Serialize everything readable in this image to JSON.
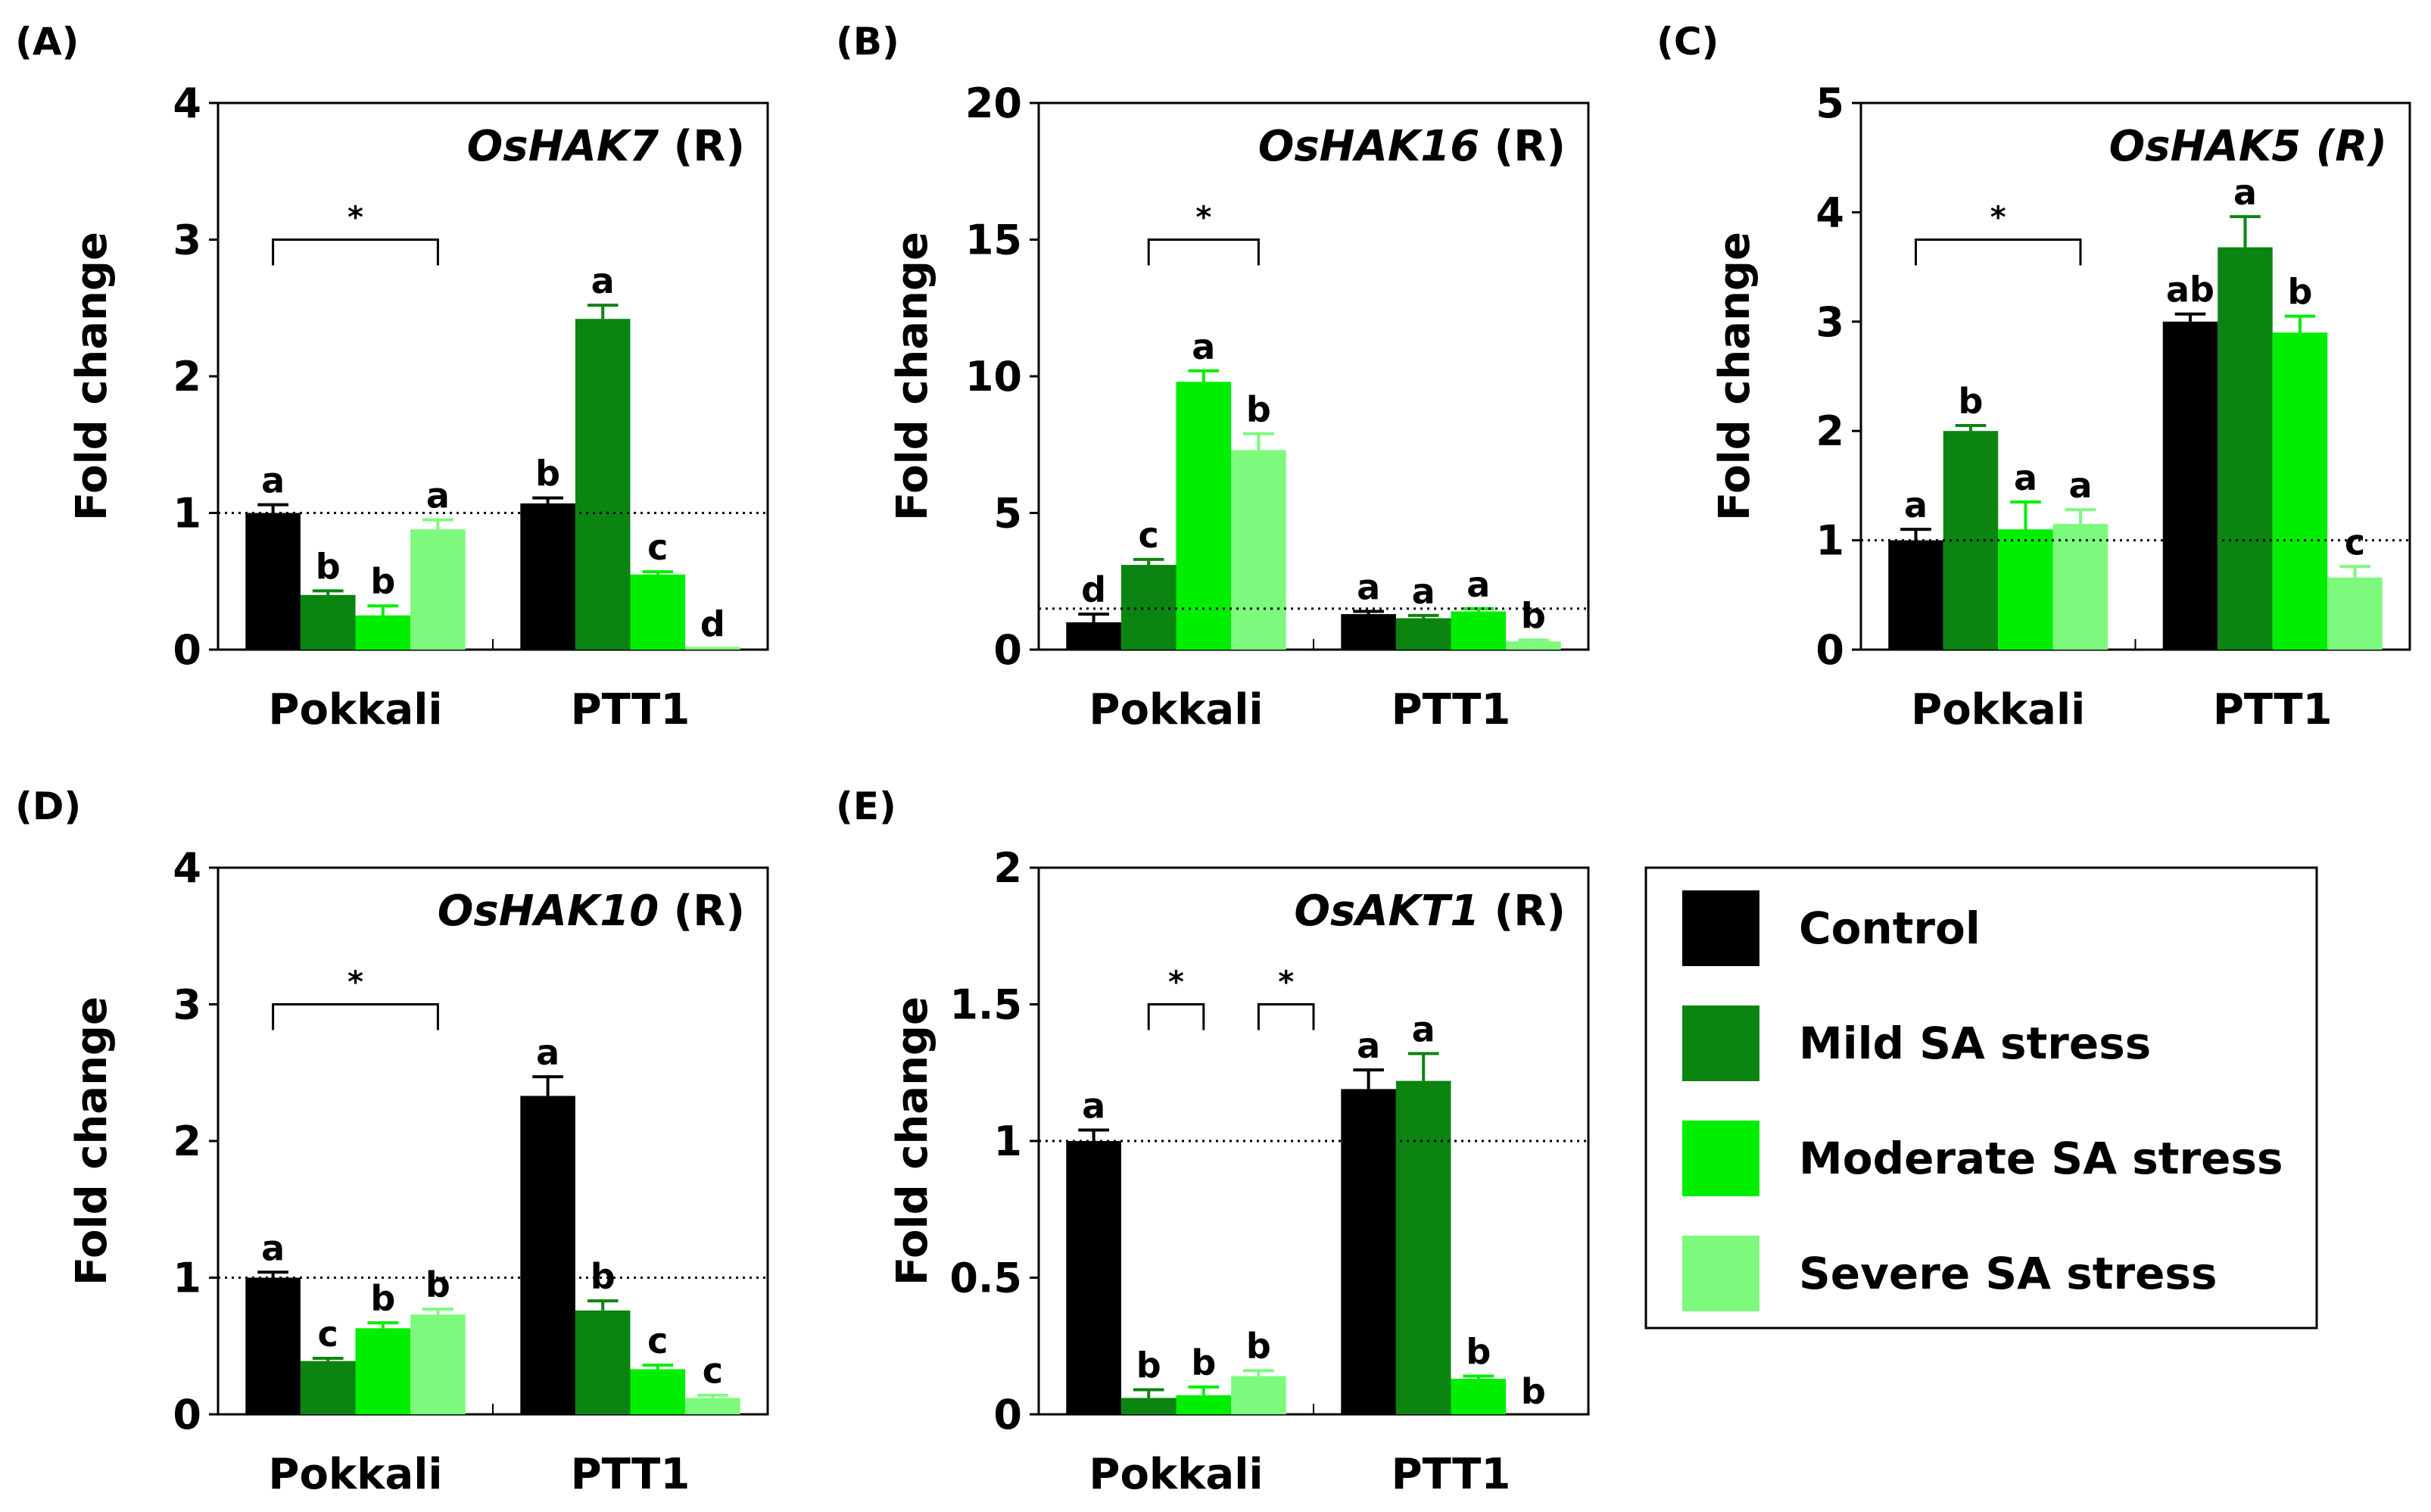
{
  "legend": {
    "series_colors": [
      "#000000",
      "#0b8412",
      "#00ee00",
      "#7dfa7d"
    ],
    "entries": [
      "Control",
      "Mild SA stress",
      "Moderate SA stress",
      "Severe SA stress"
    ]
  },
  "chart_data": [
    {
      "panel": "(A)",
      "type": "bar",
      "gene": "OsHAK7",
      "suffix": "(R)",
      "gene_italic_suffix": false,
      "title": "OsHAK7 (R)",
      "ylabel": "Fold change",
      "ylim": [
        0,
        4
      ],
      "yticks": [
        "0",
        "1",
        "2",
        "3",
        "4"
      ],
      "reference_line": 1,
      "categories": [
        "Pokkali",
        "PTT1"
      ],
      "series": [
        {
          "name": "Control",
          "values": [
            1.0,
            1.07
          ],
          "errors": [
            0.06,
            0.04
          ],
          "letters": [
            "a",
            "b"
          ]
        },
        {
          "name": "Mild SA stress",
          "values": [
            0.4,
            2.42
          ],
          "errors": [
            0.03,
            0.1
          ],
          "letters": [
            "b",
            "a"
          ]
        },
        {
          "name": "Moderate SA stress",
          "values": [
            0.25,
            0.55
          ],
          "errors": [
            0.07,
            0.02
          ],
          "letters": [
            "b",
            "c"
          ]
        },
        {
          "name": "Severe SA stress",
          "values": [
            0.88,
            0.02
          ],
          "errors": [
            0.07,
            0.0
          ],
          "letters": [
            "a",
            "d"
          ]
        }
      ],
      "brackets": [
        {
          "category": 0,
          "from": 0,
          "to": 3,
          "y": 3.0,
          "text": "*"
        }
      ]
    },
    {
      "panel": "(B)",
      "type": "bar",
      "gene": "OsHAK16",
      "suffix": "(R)",
      "gene_italic_suffix": false,
      "title": "OsHAK16 (R)",
      "ylabel": "Fold change",
      "ylim": [
        0,
        20
      ],
      "yticks": [
        "0",
        "5",
        "10",
        "15",
        "20"
      ],
      "reference_line": 1.5,
      "categories": [
        "Pokkali",
        "PTT1"
      ],
      "series": [
        {
          "name": "Control",
          "values": [
            1.0,
            1.3
          ],
          "errors": [
            0.3,
            0.1
          ],
          "letters": [
            "d",
            "a"
          ]
        },
        {
          "name": "Mild SA stress",
          "values": [
            3.1,
            1.15
          ],
          "errors": [
            0.2,
            0.1
          ],
          "letters": [
            "c",
            "a"
          ]
        },
        {
          "name": "Moderate SA stress",
          "values": [
            9.8,
            1.4
          ],
          "errors": [
            0.4,
            0.1
          ],
          "letters": [
            "a",
            "a"
          ]
        },
        {
          "name": "Severe SA stress",
          "values": [
            7.3,
            0.3
          ],
          "errors": [
            0.6,
            0.05
          ],
          "letters": [
            "b",
            "b"
          ]
        }
      ],
      "brackets": [
        {
          "category": 0,
          "from": 1,
          "to": 3,
          "y": 15,
          "text": "*"
        }
      ]
    },
    {
      "panel": "(C)",
      "type": "bar",
      "gene": "OsHAK5",
      "suffix": "(R)",
      "gene_italic_suffix": true,
      "title": "OsHAK5 (R)",
      "ylabel": "Fold change",
      "ylim": [
        0,
        5
      ],
      "yticks": [
        "0",
        "1",
        "2",
        "3",
        "4",
        "5"
      ],
      "reference_line": 1,
      "categories": [
        "Pokkali",
        "PTT1"
      ],
      "series": [
        {
          "name": "Control",
          "values": [
            1.0,
            3.0
          ],
          "errors": [
            0.1,
            0.07
          ],
          "letters": [
            "a",
            "ab"
          ]
        },
        {
          "name": "Mild SA stress",
          "values": [
            2.0,
            3.68
          ],
          "errors": [
            0.05,
            0.28
          ],
          "letters": [
            "b",
            "a"
          ]
        },
        {
          "name": "Moderate SA stress",
          "values": [
            1.1,
            2.9
          ],
          "errors": [
            0.25,
            0.15
          ],
          "letters": [
            "a",
            "b"
          ]
        },
        {
          "name": "Severe SA stress",
          "values": [
            1.15,
            0.66
          ],
          "errors": [
            0.13,
            0.1
          ],
          "letters": [
            "a",
            "c"
          ]
        }
      ],
      "brackets": [
        {
          "category": 0,
          "from": 0,
          "to": 3,
          "y": 3.75,
          "text": "*"
        }
      ]
    },
    {
      "panel": "(D)",
      "type": "bar",
      "gene": "OsHAK10",
      "suffix": "(R)",
      "gene_italic_suffix": false,
      "title": "OsHAK10 (R)",
      "ylabel": "Fold change",
      "ylim": [
        0,
        4
      ],
      "yticks": [
        "0",
        "1",
        "2",
        "3",
        "4"
      ],
      "reference_line": 1,
      "categories": [
        "Pokkali",
        "PTT1"
      ],
      "series": [
        {
          "name": "Control",
          "values": [
            1.0,
            2.33
          ],
          "errors": [
            0.04,
            0.14
          ],
          "letters": [
            "a",
            "a"
          ]
        },
        {
          "name": "Mild SA stress",
          "values": [
            0.39,
            0.76
          ],
          "errors": [
            0.02,
            0.07
          ],
          "letters": [
            "c",
            "b"
          ]
        },
        {
          "name": "Moderate SA stress",
          "values": [
            0.63,
            0.33
          ],
          "errors": [
            0.04,
            0.03
          ],
          "letters": [
            "b",
            "c"
          ]
        },
        {
          "name": "Severe SA stress",
          "values": [
            0.73,
            0.12
          ],
          "errors": [
            0.04,
            0.02
          ],
          "letters": [
            "b",
            "c"
          ]
        }
      ],
      "brackets": [
        {
          "category": 0,
          "from": 0,
          "to": 3,
          "y": 3.0,
          "text": "*"
        }
      ]
    },
    {
      "panel": "(E)",
      "type": "bar",
      "gene": "OsAKT1",
      "suffix": "(R)",
      "gene_italic_suffix": false,
      "title": "OsAKT1 (R)",
      "ylabel": "Fold change",
      "ylim": [
        0,
        2
      ],
      "yticks": [
        "0",
        "0.5",
        "1",
        "1.5",
        "2"
      ],
      "reference_line": 1,
      "categories": [
        "Pokkali",
        "PTT1"
      ],
      "series": [
        {
          "name": "Control",
          "values": [
            1.0,
            1.19
          ],
          "errors": [
            0.04,
            0.07
          ],
          "letters": [
            "a",
            "a"
          ]
        },
        {
          "name": "Mild SA stress",
          "values": [
            0.06,
            1.22
          ],
          "errors": [
            0.03,
            0.1
          ],
          "letters": [
            "b",
            "a"
          ]
        },
        {
          "name": "Moderate SA stress",
          "values": [
            0.07,
            0.13
          ],
          "errors": [
            0.03,
            0.01
          ],
          "letters": [
            "b",
            "b"
          ]
        },
        {
          "name": "Severe SA stress",
          "values": [
            0.14,
            0.0
          ],
          "errors": [
            0.02,
            0.0
          ],
          "letters": [
            "b",
            "b"
          ]
        }
      ],
      "brackets": [
        {
          "category": 0,
          "from": 1,
          "to": 2,
          "y": 1.5,
          "text": "*"
        },
        {
          "category": 0,
          "from": 3,
          "to": 4,
          "y": 1.5,
          "text": "*"
        }
      ]
    }
  ]
}
